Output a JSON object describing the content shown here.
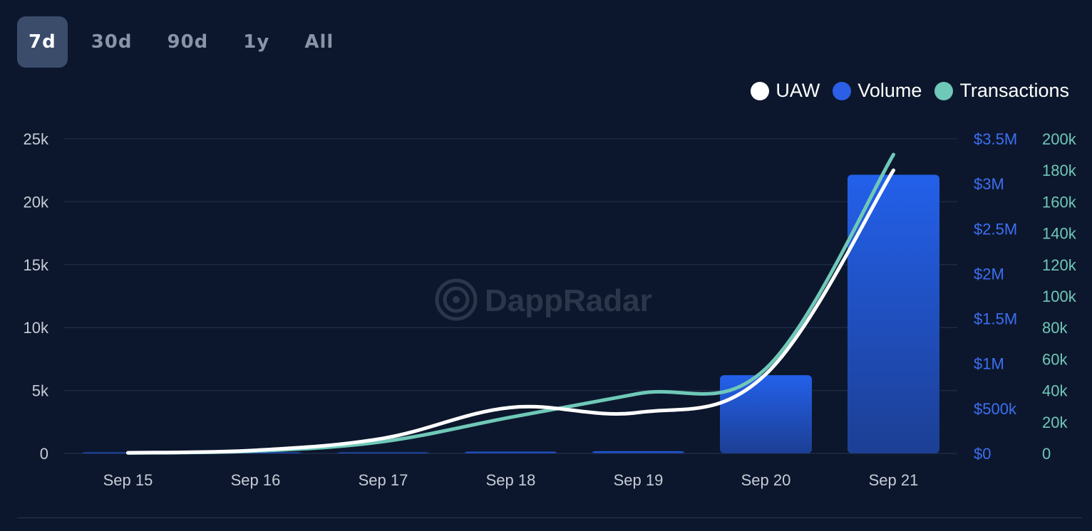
{
  "range_tabs": {
    "items": [
      {
        "label": "7d",
        "active": true
      },
      {
        "label": "30d",
        "active": false
      },
      {
        "label": "90d",
        "active": false
      },
      {
        "label": "1y",
        "active": false
      },
      {
        "label": "All",
        "active": false
      }
    ]
  },
  "watermark": "DappRadar",
  "colors": {
    "background": "#0c172d",
    "uaw": "#ffffff",
    "volume": "#2a5fe6",
    "transactions": "#6fc8b8",
    "grid": "#1e2a43",
    "axis_text": "#c7ccd6",
    "volume_axis_text": "#3d6ff0",
    "transactions_axis_text": "#6fc8b8"
  },
  "chart_data": {
    "type": "bar",
    "categories": [
      "Sep 15",
      "Sep 16",
      "Sep 17",
      "Sep 18",
      "Sep 19",
      "Sep 20",
      "Sep 21"
    ],
    "series": [
      {
        "name": "UAW",
        "type": "line",
        "axis": "left",
        "values": [
          50,
          250,
          1200,
          3650,
          3250,
          6300,
          22500
        ]
      },
      {
        "name": "Volume",
        "type": "bar",
        "axis": "right-1",
        "values": [
          1000,
          2000,
          5000,
          20000,
          25000,
          870000,
          3100000
        ]
      },
      {
        "name": "Transactions",
        "type": "line",
        "axis": "right-2",
        "values": [
          300,
          1500,
          7500,
          23000,
          38000,
          54000,
          190000
        ]
      }
    ],
    "axes": {
      "left": {
        "ticks": [
          "0",
          "5k",
          "10k",
          "15k",
          "20k",
          "25k"
        ],
        "ylim": [
          0,
          25000
        ]
      },
      "right_1": {
        "ticks": [
          "$0",
          "$500k",
          "$1M",
          "$1.5M",
          "$2M",
          "$2.5M",
          "$3M",
          "$3.5M"
        ],
        "ylim": [
          0,
          3500000
        ]
      },
      "right_2": {
        "ticks": [
          "0",
          "20k",
          "40k",
          "60k",
          "80k",
          "100k",
          "120k",
          "140k",
          "160k",
          "180k",
          "200k"
        ],
        "ylim": [
          0,
          200000
        ]
      }
    },
    "legend": {
      "placement": "top-right",
      "entries": [
        "UAW",
        "Volume",
        "Transactions"
      ]
    },
    "grid": true
  }
}
